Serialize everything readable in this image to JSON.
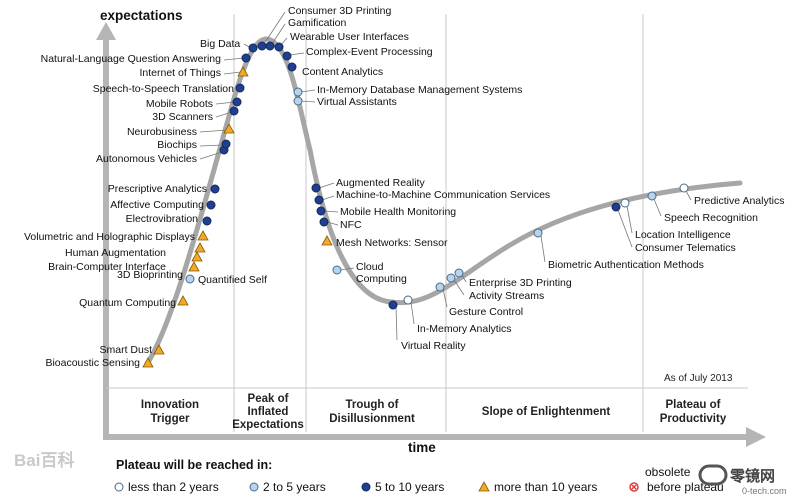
{
  "axes": {
    "y_label": "expectations",
    "x_label": "time"
  },
  "as_of": "As of July 2013",
  "phases": [
    {
      "lines": [
        "Innovation",
        "Trigger"
      ]
    },
    {
      "lines": [
        "Peak of",
        "Inflated",
        "Expectations"
      ]
    },
    {
      "lines": [
        "Trough of",
        "Disillusionment"
      ]
    },
    {
      "lines": [
        "Slope of Enlightenment"
      ]
    },
    {
      "lines": [
        "Plateau of",
        "Productivity"
      ]
    }
  ],
  "legend": {
    "title": "Plateau will be reached in:",
    "items": [
      {
        "label": "less than 2 years",
        "marker": "white-circle"
      },
      {
        "label": "2 to 5 years",
        "marker": "light-blue-circle"
      },
      {
        "label": "5 to 10 years",
        "marker": "dark-blue-circle"
      },
      {
        "label": "more than 10 years",
        "marker": "orange-triangle"
      },
      {
        "label": "obsolete before plateau",
        "marker": "red-x-circle"
      }
    ]
  },
  "colors": {
    "curve": "#a6a6a6",
    "white": "#ffffff",
    "light_blue": "#b7d4ec",
    "dark_blue": "#1f3f8f",
    "orange": "#f0a928",
    "red": "#e03c3c",
    "divider": "#c8c8c8",
    "axis": "#b5b5b5"
  },
  "technologies": [
    {
      "label": "Bioacoustic Sensing",
      "marker": "orange-triangle"
    },
    {
      "label": "Smart Dust",
      "marker": "orange-triangle"
    },
    {
      "label": "Quantum Computing",
      "marker": "orange-triangle"
    },
    {
      "label": "Quantified Self",
      "marker": "light-blue-circle"
    },
    {
      "label": "3D Bioprinting",
      "marker": "orange-triangle"
    },
    {
      "label": "Brain-Computer Interface",
      "marker": "orange-triangle"
    },
    {
      "label": "Human Augmentation",
      "marker": "orange-triangle"
    },
    {
      "label": "Volumetric and Holographic Displays",
      "marker": "orange-triangle"
    },
    {
      "label": "Electrovibration",
      "marker": "dark-blue-circle"
    },
    {
      "label": "Affective Computing",
      "marker": "dark-blue-circle"
    },
    {
      "label": "Prescriptive Analytics",
      "marker": "dark-blue-circle"
    },
    {
      "label": "Autonomous Vehicles",
      "marker": "dark-blue-circle"
    },
    {
      "label": "Biochips",
      "marker": "dark-blue-circle"
    },
    {
      "label": "Neurobusiness",
      "marker": "orange-triangle"
    },
    {
      "label": "3D Scanners",
      "marker": "dark-blue-circle"
    },
    {
      "label": "Mobile Robots",
      "marker": "dark-blue-circle"
    },
    {
      "label": "Speech-to-Speech Translation",
      "marker": "dark-blue-circle"
    },
    {
      "label": "Internet of Things",
      "marker": "orange-triangle"
    },
    {
      "label": "Natural-Language Question Answering",
      "marker": "dark-blue-circle"
    },
    {
      "label": "Big Data",
      "marker": "dark-blue-circle"
    },
    {
      "label": "Consumer 3D Printing",
      "marker": "dark-blue-circle"
    },
    {
      "label": "Gamification",
      "marker": "dark-blue-circle"
    },
    {
      "label": "Wearable User Interfaces",
      "marker": "dark-blue-circle"
    },
    {
      "label": "Complex-Event Processing",
      "marker": "dark-blue-circle"
    },
    {
      "label": "Content Analytics",
      "marker": "dark-blue-circle"
    },
    {
      "label": "In-Memory Database Management Systems",
      "marker": "light-blue-circle"
    },
    {
      "label": "Virtual Assistants",
      "marker": "light-blue-circle"
    },
    {
      "label": "Augmented Reality",
      "marker": "dark-blue-circle"
    },
    {
      "label": "Machine-to-Machine Communication Services",
      "marker": "dark-blue-circle"
    },
    {
      "label": "Mobile Health Monitoring",
      "marker": "dark-blue-circle"
    },
    {
      "label": "NFC",
      "marker": "dark-blue-circle"
    },
    {
      "label": "Mesh Networks: Sensor",
      "marker": "orange-triangle"
    },
    {
      "label": "Cloud Computing",
      "marker": "light-blue-circle"
    },
    {
      "label": "Virtual Reality",
      "marker": "dark-blue-circle"
    },
    {
      "label": "In-Memory Analytics",
      "marker": "white-circle"
    },
    {
      "label": "Gesture Control",
      "marker": "light-blue-circle"
    },
    {
      "label": "Activity Streams",
      "marker": "light-blue-circle"
    },
    {
      "label": "Enterprise 3D Printing",
      "marker": "light-blue-circle"
    },
    {
      "label": "Biometric Authentication Methods",
      "marker": "light-blue-circle"
    },
    {
      "label": "Consumer Telematics",
      "marker": "dark-blue-circle"
    },
    {
      "label": "Location Intelligence",
      "marker": "white-circle"
    },
    {
      "label": "Speech Recognition",
      "marker": "light-blue-circle"
    },
    {
      "label": "Predictive Analytics",
      "marker": "white-circle"
    }
  ],
  "watermark": {
    "left": "Bai百科",
    "right_cn": "零镜网",
    "right_domain": "0-tech.com"
  }
}
